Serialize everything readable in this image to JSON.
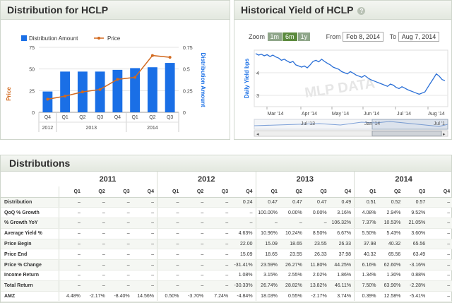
{
  "distribution_panel": {
    "title": "Distribution for HCLP",
    "legend": [
      "Distribution Amount",
      "Price"
    ],
    "left_axis_label": "Price",
    "right_axis_label": "Distribution Amount",
    "left_ticks": [
      "75",
      "50",
      "25",
      "0"
    ],
    "right_ticks": [
      "0.75",
      "0.5",
      "0.25",
      "0"
    ],
    "x_labels": [
      "Q4",
      "Q1",
      "Q2",
      "Q3",
      "Q4",
      "Q1",
      "Q2",
      "Q3"
    ],
    "x_years": [
      "2012",
      "2013",
      "2014"
    ]
  },
  "yield_panel": {
    "title": "Historical Yield of HCLP",
    "help": "?",
    "zoom_label": "Zoom",
    "zoom_buttons": [
      "1m",
      "6m",
      "1y"
    ],
    "from_label": "From",
    "from_date": "Feb 8, 2014",
    "to_label": "To",
    "to_date": "Aug 7, 2014",
    "y_axis_label": "Daily Yield bps",
    "y_ticks": [
      "4",
      "3"
    ],
    "x_labels": [
      "Mar '14",
      "Apr '14",
      "May '14",
      "Jun '14",
      "Jul '14",
      "Aug '14"
    ],
    "navigator_labels": [
      "Jul '13",
      "Jan '14",
      "Jul '1"
    ],
    "watermark": "MLP DATA"
  },
  "colors": {
    "bar": "#1a6fe6",
    "price_line": "#d2691e",
    "yield_line": "#2a6fd6",
    "accent_green": "#5b8a3d"
  },
  "chart_data": [
    {
      "type": "bar",
      "title": "Distribution for HCLP",
      "categories": [
        "Q4 2012",
        "Q1 2013",
        "Q2 2013",
        "Q3 2013",
        "Q4 2013",
        "Q1 2014",
        "Q2 2014",
        "Q3 2014"
      ],
      "series": [
        {
          "name": "Distribution Amount",
          "axis": "right",
          "values": [
            0.24,
            0.47,
            0.47,
            0.47,
            0.49,
            0.51,
            0.52,
            0.57
          ]
        },
        {
          "name": "Price",
          "axis": "left",
          "type": "line",
          "values": [
            15.09,
            18.65,
            23.55,
            26.33,
            37.98,
            40.32,
            65.56,
            63.49
          ]
        }
      ],
      "ylabel": "Price",
      "y2label": "Distribution Amount",
      "ylim": [
        0,
        75
      ],
      "y2lim": [
        0,
        0.75
      ]
    },
    {
      "type": "line",
      "title": "Historical Yield of HCLP",
      "ylabel": "Daily Yield bps",
      "x_range": [
        "2014-02-08",
        "2014-08-07"
      ],
      "ylim": [
        2.5,
        5
      ],
      "series": [
        {
          "values": [
            4.85,
            4.78,
            4.82,
            4.75,
            4.8,
            4.72,
            4.78,
            4.7,
            4.65,
            4.55,
            4.6,
            4.52,
            4.45,
            4.5,
            4.35,
            4.3,
            4.25,
            4.3,
            4.22,
            4.35,
            4.5,
            4.55,
            4.48,
            4.6,
            4.5,
            4.42,
            4.35,
            4.25,
            4.2,
            4.15,
            4.05,
            4.0,
            3.95,
            4.05,
            3.98,
            3.9,
            3.85,
            3.8,
            3.88,
            3.78,
            3.7,
            3.65,
            3.6,
            3.55,
            3.5,
            3.45,
            3.4,
            3.5,
            3.45,
            3.35,
            3.3,
            3.38,
            3.32,
            3.25,
            3.2,
            3.15,
            3.1,
            3.05,
            3.1,
            3.15,
            3.35,
            3.55,
            3.75,
            3.95,
            3.85,
            3.7,
            3.65
          ]
        }
      ]
    }
  ],
  "table": {
    "title": "Distributions",
    "years": [
      "2011",
      "2012",
      "2013",
      "2014"
    ],
    "quarters": [
      "Q1",
      "Q2",
      "Q3",
      "Q4",
      "Q1",
      "Q2",
      "Q3",
      "Q4",
      "Q1",
      "Q2",
      "Q3",
      "Q4",
      "Q1",
      "Q2",
      "Q3",
      "Q4"
    ],
    "rows": [
      {
        "label": "Distribution",
        "cells": [
          "–",
          "–",
          "–",
          "–",
          "–",
          "–",
          "–",
          "0.24",
          "0.47",
          "0.47",
          "0.47",
          "0.49",
          "0.51",
          "0.52",
          "0.57",
          "–"
        ]
      },
      {
        "label": "QoQ % Growth",
        "cells": [
          "–",
          "–",
          "–",
          "–",
          "–",
          "–",
          "–",
          "–",
          "100.00%",
          "0.00%",
          "0.00%",
          "3.16%",
          "4.08%",
          "2.94%",
          "9.52%",
          "–"
        ]
      },
      {
        "label": "% Growth YoY",
        "cells": [
          "–",
          "–",
          "–",
          "–",
          "–",
          "–",
          "–",
          "–",
          "–",
          "–",
          "–",
          "106.32%",
          "7.37%",
          "10.53%",
          "21.05%",
          "–"
        ]
      },
      {
        "label": "Average Yield %",
        "cells": [
          "–",
          "–",
          "–",
          "–",
          "–",
          "–",
          "–",
          "4.63%",
          "10.96%",
          "10.24%",
          "8.50%",
          "6.67%",
          "5.50%",
          "5.43%",
          "3.60%",
          "–"
        ]
      },
      {
        "label": "Price Begin",
        "cells": [
          "–",
          "–",
          "–",
          "–",
          "–",
          "–",
          "–",
          "22.00",
          "15.09",
          "18.65",
          "23.55",
          "26.33",
          "37.98",
          "40.32",
          "65.56",
          "–"
        ]
      },
      {
        "label": "Price End",
        "cells": [
          "–",
          "–",
          "–",
          "–",
          "–",
          "–",
          "–",
          "15.09",
          "18.65",
          "23.55",
          "26.33",
          "37.98",
          "40.32",
          "65.56",
          "63.49",
          "–"
        ]
      },
      {
        "label": "Price % Change",
        "cells": [
          "–",
          "–",
          "–",
          "–",
          "–",
          "–",
          "–",
          "-31.41%",
          "23.59%",
          "26.27%",
          "11.80%",
          "44.25%",
          "6.16%",
          "62.60%",
          "-3.16%",
          "–"
        ]
      },
      {
        "label": "Income Return",
        "cells": [
          "–",
          "–",
          "–",
          "–",
          "–",
          "–",
          "–",
          "1.08%",
          "3.15%",
          "2.55%",
          "2.02%",
          "1.86%",
          "1.34%",
          "1.30%",
          "0.88%",
          "–"
        ]
      },
      {
        "label": "Total Return",
        "cells": [
          "–",
          "–",
          "–",
          "–",
          "–",
          "–",
          "–",
          "-30.33%",
          "26.74%",
          "28.82%",
          "13.82%",
          "46.11%",
          "7.50%",
          "63.90%",
          "-2.28%",
          "–"
        ]
      },
      {
        "label": "AMZ",
        "cells": [
          "4.48%",
          "-2.17%",
          "-8.40%",
          "14.56%",
          "0.50%",
          "-3.70%",
          "7.24%",
          "-4.84%",
          "18.03%",
          "0.55%",
          "-2.17%",
          "3.74%",
          "0.39%",
          "12.58%",
          "-5.41%",
          "–"
        ]
      }
    ]
  }
}
